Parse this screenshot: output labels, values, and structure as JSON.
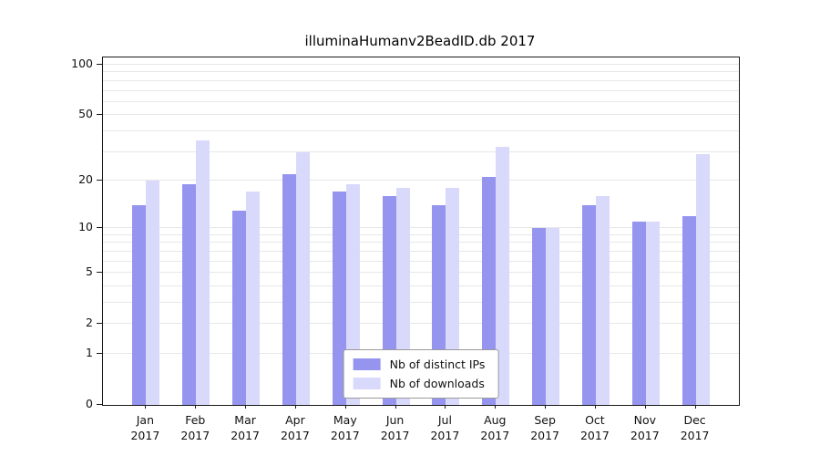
{
  "title": "illuminaHumanv2BeadID.db 2017",
  "chart_data": {
    "type": "bar",
    "title": "illuminaHumanv2BeadID.db 2017",
    "year": "2017",
    "categories": [
      "Jan",
      "Feb",
      "Mar",
      "Apr",
      "May",
      "Jun",
      "Jul",
      "Aug",
      "Sep",
      "Oct",
      "Nov",
      "Dec"
    ],
    "series": [
      {
        "name": "Nb of distinct IPs",
        "color": "#9595ef",
        "values": [
          14,
          19,
          13,
          22,
          17,
          16,
          14,
          21,
          10,
          14,
          11,
          12
        ]
      },
      {
        "name": "Nb of downloads",
        "color": "#d9d9fb",
        "values": [
          20,
          35,
          17,
          30,
          19,
          18,
          18,
          32,
          10,
          16,
          11,
          29
        ]
      }
    ],
    "y_ticks": [
      0,
      1,
      2,
      5,
      10,
      20,
      50,
      100
    ],
    "minor_gridlines": [
      3,
      4,
      6,
      7,
      8,
      9,
      30,
      40,
      60,
      70,
      80,
      90
    ],
    "scale": "log10(v+1)",
    "ylim": [
      0,
      110
    ],
    "grid": true,
    "legend_position": "bottom-center",
    "axis_color": "#1a1a1a",
    "gridline_color": "#e7e7e7"
  }
}
